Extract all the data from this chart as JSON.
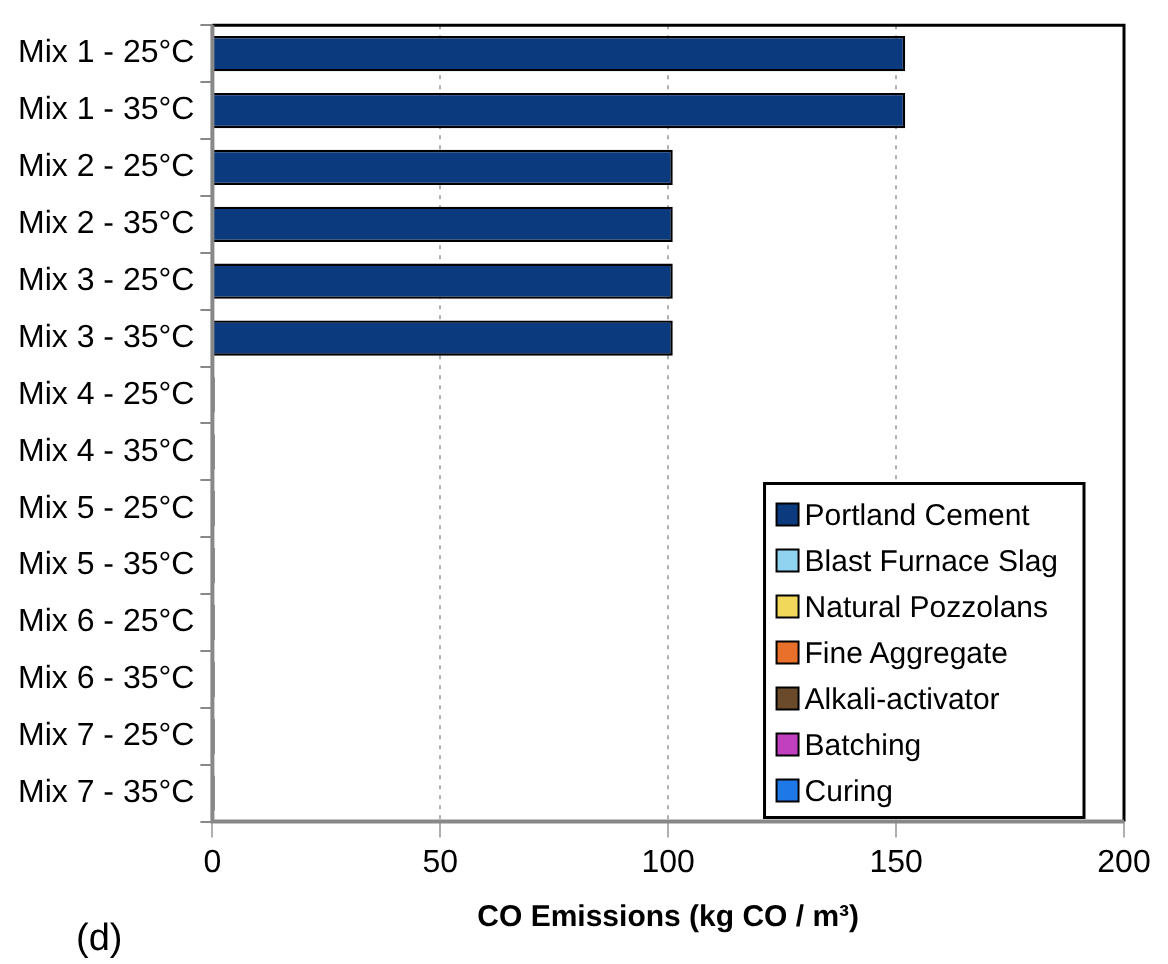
{
  "chart_data": {
    "type": "bar",
    "orientation": "horizontal",
    "stacked": true,
    "categories": [
      "Mix 1 - 25°C",
      "Mix 1 - 35°C",
      "Mix 2 - 25°C",
      "Mix 2 - 35°C",
      "Mix 3 - 25°C",
      "Mix 3 - 35°C",
      "Mix 4 - 25°C",
      "Mix 4 - 35°C",
      "Mix 5 - 25°C",
      "Mix 5 - 35°C",
      "Mix 6 - 25°C",
      "Mix 6 - 35°C",
      "Mix 7 - 25°C",
      "Mix 7 - 35°C"
    ],
    "series": [
      {
        "name": "Portland Cement",
        "color": "#0b3a7e",
        "values": [
          152,
          152,
          101,
          101,
          101,
          101,
          0,
          0,
          0,
          0,
          0,
          0,
          0,
          0
        ]
      },
      {
        "name": "Blast Furnace Slag",
        "color": "#8fd3f0",
        "values": [
          0,
          0,
          0,
          0,
          0,
          0,
          0,
          0,
          0,
          0,
          0,
          0,
          0,
          0
        ]
      },
      {
        "name": "Natural Pozzolans",
        "color": "#f2d85a",
        "values": [
          0,
          0,
          0,
          0,
          0,
          0,
          0,
          0,
          0,
          0,
          0,
          0,
          0,
          0
        ]
      },
      {
        "name": "Fine Aggregate",
        "color": "#e8702a",
        "values": [
          0,
          0,
          0,
          0,
          0,
          0,
          0,
          0,
          0,
          0,
          0,
          0,
          0,
          0
        ]
      },
      {
        "name": "Alkali-activator",
        "color": "#6b4a2b",
        "values": [
          0,
          0,
          0,
          0,
          0,
          0,
          0,
          0,
          0,
          0,
          0,
          0,
          0,
          0
        ]
      },
      {
        "name": "Batching",
        "color": "#c040c0",
        "values": [
          0,
          0,
          0,
          0,
          0,
          0,
          0,
          0,
          0,
          0,
          0,
          0,
          0,
          0
        ]
      },
      {
        "name": "Curing",
        "color": "#1f78e8",
        "values": [
          0,
          0,
          0,
          0,
          0,
          0,
          0.5,
          0.5,
          0.5,
          0.5,
          0.5,
          0.5,
          0.5,
          0.5
        ]
      }
    ],
    "xlim": [
      0,
      200
    ],
    "xticks": [
      0,
      50,
      100,
      150,
      200
    ],
    "grid": "x",
    "legend": "bottom right",
    "xlabel": "CO Emissions (kg CO / m³)",
    "annotations": [
      "(d)"
    ]
  }
}
